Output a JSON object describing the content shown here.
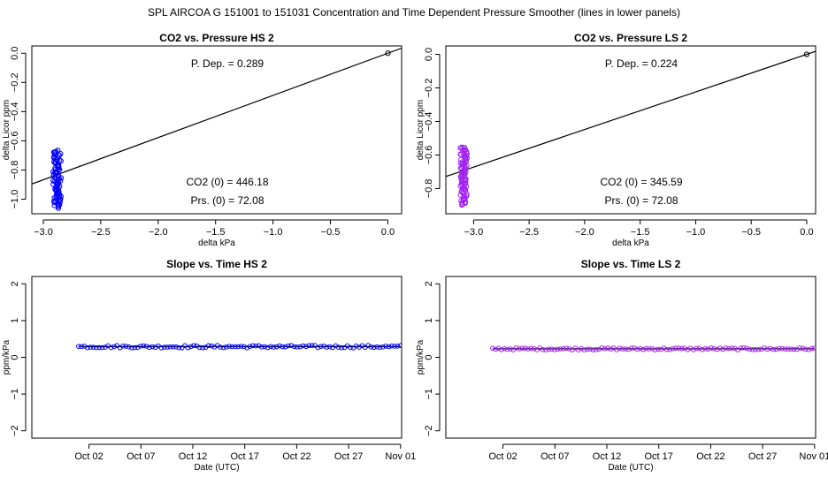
{
  "header": {
    "title": "SPL   AIRCOA G   151001 to 151031   Concentration and Time Dependent Pressure Smoother (lines in lower panels)"
  },
  "chart_data": [
    {
      "type": "scatter",
      "title": "CO2 vs. Pressure HS 2",
      "xlabel": "delta kPa",
      "ylabel": "delta Licor ppm",
      "xlim": [
        -3.1,
        0.12
      ],
      "ylim": [
        -1.1,
        0.05
      ],
      "xticks": [
        -3.0,
        -2.5,
        -2.0,
        -1.5,
        -1.0,
        -0.5,
        0.0
      ],
      "xtick_labels": [
        "−3.0",
        "−2.5",
        "−2.0",
        "−1.5",
        "−1.0",
        "−0.5",
        "0.0"
      ],
      "yticks": [
        0.0,
        -0.2,
        -0.4,
        -0.6,
        -0.8,
        -1.0
      ],
      "ytick_labels": [
        "0.0",
        "−0.2",
        "−0.4",
        "−0.6",
        "−0.8",
        "−1.0"
      ],
      "point_color": "#0000ff",
      "cluster": {
        "x_center": -2.88,
        "x_spread": 0.035,
        "y_min": -1.06,
        "y_max": -0.67,
        "count": 90
      },
      "origin_point": {
        "x": 0.0,
        "y": 0.0
      },
      "fit_line": {
        "slope": 0.289,
        "intercept": 0.0
      },
      "annotations": {
        "p_dep": "P. Dep. =  0.289",
        "co2_0": "CO2 (0) =  446.18",
        "prs_0": "Prs. (0) = 72.08"
      }
    },
    {
      "type": "scatter",
      "title": "CO2 vs. Pressure LS 2",
      "xlabel": "delta kPa",
      "ylabel": "delta Licor ppm",
      "xlim": [
        -3.25,
        0.08
      ],
      "ylim": [
        -0.95,
        0.05
      ],
      "xticks": [
        -3.0,
        -2.5,
        -2.0,
        -1.5,
        -1.0,
        -0.5,
        0.0
      ],
      "xtick_labels": [
        "−3.0",
        "−2.5",
        "−2.0",
        "−1.5",
        "−1.0",
        "−0.5",
        "0.0"
      ],
      "yticks": [
        0.0,
        -0.2,
        -0.4,
        -0.6,
        -0.8
      ],
      "ytick_labels": [
        "0.0",
        "−0.2",
        "−0.4",
        "−0.6",
        "−0.8"
      ],
      "point_color": "#a020f0",
      "cluster": {
        "x_center": -3.09,
        "x_spread": 0.03,
        "y_min": -0.9,
        "y_max": -0.55,
        "count": 90
      },
      "origin_point": {
        "x": 0.0,
        "y": 0.0
      },
      "fit_line": {
        "slope": 0.224,
        "intercept": 0.0
      },
      "annotations": {
        "p_dep": "P. Dep. =  0.224",
        "co2_0": "CO2 (0) =  345.59",
        "prs_0": "Prs. (0) = 72.08"
      }
    },
    {
      "type": "line",
      "title": "Slope vs. Time HS 2",
      "xlabel": "Date (UTC)",
      "ylabel": "ppm/kPa",
      "xlim": [
        -4.5,
        31.1
      ],
      "ylim": [
        -2.2,
        2.2
      ],
      "xticks": [
        1,
        6,
        11,
        16,
        21,
        26,
        31
      ],
      "xtick_labels": [
        "Oct 02",
        "Oct 07",
        "Oct 12",
        "Oct 17",
        "Oct 22",
        "Oct 27",
        "Nov 01"
      ],
      "yticks": [
        -2,
        -1,
        0,
        1,
        2
      ],
      "ytick_labels": [
        "−2",
        "−1",
        "0",
        "1",
        "2"
      ],
      "point_color": "#0000ff",
      "series_range": {
        "x_start": 0,
        "x_end": 31,
        "mean": 0.29,
        "jitter": 0.035
      },
      "count": 110
    },
    {
      "type": "line",
      "title": "Slope vs. Time LS 2",
      "xlabel": "Date (UTC)",
      "ylabel": "ppm/kPa",
      "xlim": [
        -4.5,
        31.1
      ],
      "ylim": [
        -2.2,
        2.2
      ],
      "xticks": [
        1,
        6,
        11,
        16,
        21,
        26,
        31
      ],
      "xtick_labels": [
        "Oct 02",
        "Oct 07",
        "Oct 12",
        "Oct 17",
        "Oct 22",
        "Oct 27",
        "Nov 01"
      ],
      "yticks": [
        -2,
        -1,
        0,
        1,
        2
      ],
      "ytick_labels": [
        "−2",
        "−1",
        "0",
        "1",
        "2"
      ],
      "point_color": "#a020f0",
      "series_range": {
        "x_start": 0,
        "x_end": 31,
        "mean": 0.23,
        "jitter": 0.03
      },
      "count": 110
    }
  ]
}
